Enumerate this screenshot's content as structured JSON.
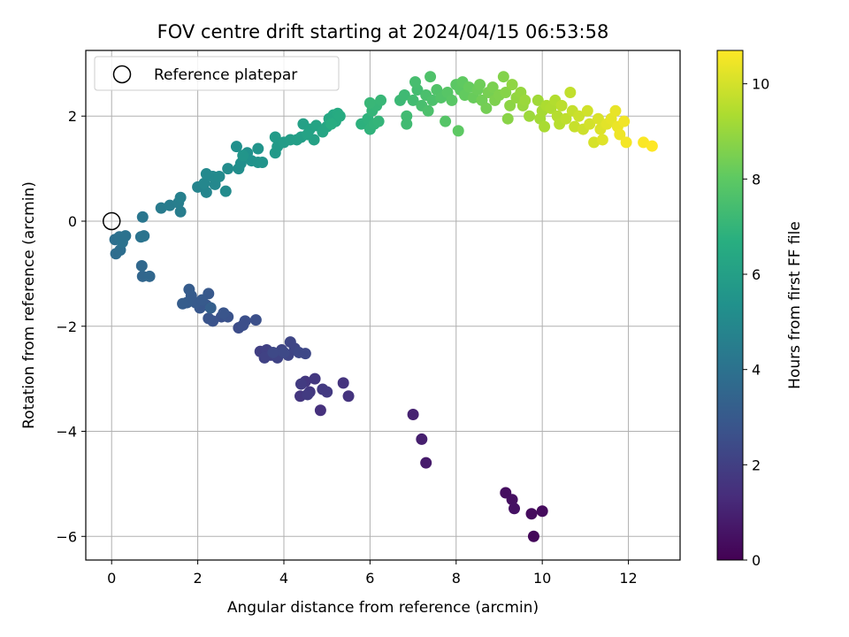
{
  "chart_data": {
    "type": "scatter",
    "title": "FOV centre drift starting at 2024/04/15 06:53:58",
    "xlabel": "Angular distance from reference (arcmin)",
    "ylabel": "Rotation from reference (arcmin)",
    "xlim": [
      -0.6,
      13.2
    ],
    "ylim": [
      -6.45,
      3.25
    ],
    "xticks": [
      0,
      2,
      4,
      6,
      8,
      10,
      12
    ],
    "yticks": [
      -6,
      -4,
      -2,
      0,
      2
    ],
    "grid": true,
    "legend": {
      "location": "top-left",
      "entries": [
        "Reference platepar"
      ]
    },
    "reference_point": {
      "x": 0,
      "y": 0
    },
    "colorbar": {
      "label": "Hours from first FF file",
      "range": [
        0,
        10.7
      ],
      "ticks": [
        0,
        2,
        4,
        6,
        8,
        10
      ],
      "colormap": "viridis"
    },
    "points": [
      {
        "x": 9.8,
        "y": -6.0,
        "c": 0.2
      },
      {
        "x": 9.75,
        "y": -5.57,
        "c": 0.3
      },
      {
        "x": 10.0,
        "y": -5.52,
        "c": 0.3
      },
      {
        "x": 9.15,
        "y": -5.17,
        "c": 0.4
      },
      {
        "x": 9.3,
        "y": -5.3,
        "c": 0.45
      },
      {
        "x": 9.35,
        "y": -5.47,
        "c": 0.5
      },
      {
        "x": 7.3,
        "y": -4.6,
        "c": 0.8
      },
      {
        "x": 7.2,
        "y": -4.15,
        "c": 0.9
      },
      {
        "x": 7.0,
        "y": -3.68,
        "c": 1.0
      },
      {
        "x": 4.85,
        "y": -3.6,
        "c": 1.5
      },
      {
        "x": 5.5,
        "y": -3.33,
        "c": 1.6
      },
      {
        "x": 5.38,
        "y": -3.08,
        "c": 1.6
      },
      {
        "x": 4.5,
        "y": -3.05,
        "c": 1.7
      },
      {
        "x": 4.38,
        "y": -3.33,
        "c": 1.7
      },
      {
        "x": 4.6,
        "y": -3.25,
        "c": 1.75
      },
      {
        "x": 4.72,
        "y": -3.0,
        "c": 1.75
      },
      {
        "x": 4.9,
        "y": -3.2,
        "c": 1.8
      },
      {
        "x": 5.0,
        "y": -3.25,
        "c": 1.8
      },
      {
        "x": 4.4,
        "y": -3.1,
        "c": 1.85
      },
      {
        "x": 4.55,
        "y": -3.3,
        "c": 1.85
      },
      {
        "x": 3.45,
        "y": -2.48,
        "c": 2.0
      },
      {
        "x": 3.6,
        "y": -2.45,
        "c": 2.05
      },
      {
        "x": 3.7,
        "y": -2.55,
        "c": 2.1
      },
      {
        "x": 3.55,
        "y": -2.6,
        "c": 2.1
      },
      {
        "x": 3.85,
        "y": -2.6,
        "c": 2.15
      },
      {
        "x": 3.95,
        "y": -2.45,
        "c": 2.2
      },
      {
        "x": 4.1,
        "y": -2.55,
        "c": 2.2
      },
      {
        "x": 4.25,
        "y": -2.42,
        "c": 2.25
      },
      {
        "x": 4.15,
        "y": -2.3,
        "c": 2.25
      },
      {
        "x": 4.35,
        "y": -2.5,
        "c": 2.3
      },
      {
        "x": 4.5,
        "y": -2.52,
        "c": 2.3
      },
      {
        "x": 3.75,
        "y": -2.5,
        "c": 2.35
      },
      {
        "x": 4.0,
        "y": -2.5,
        "c": 2.35
      },
      {
        "x": 2.95,
        "y": -2.03,
        "c": 2.5
      },
      {
        "x": 3.1,
        "y": -1.9,
        "c": 2.55
      },
      {
        "x": 3.05,
        "y": -1.98,
        "c": 2.55
      },
      {
        "x": 3.35,
        "y": -1.88,
        "c": 2.6
      },
      {
        "x": 2.55,
        "y": -1.82,
        "c": 2.65
      },
      {
        "x": 2.7,
        "y": -1.82,
        "c": 2.7
      },
      {
        "x": 2.35,
        "y": -1.9,
        "c": 2.7
      },
      {
        "x": 2.25,
        "y": -1.85,
        "c": 2.75
      },
      {
        "x": 2.6,
        "y": -1.75,
        "c": 2.8
      },
      {
        "x": 2.2,
        "y": -1.6,
        "c": 2.85
      },
      {
        "x": 2.05,
        "y": -1.65,
        "c": 2.9
      },
      {
        "x": 2.25,
        "y": -1.38,
        "c": 2.95
      },
      {
        "x": 1.95,
        "y": -1.55,
        "c": 3.0
      },
      {
        "x": 2.1,
        "y": -1.5,
        "c": 3.0
      },
      {
        "x": 1.85,
        "y": -1.42,
        "c": 3.05
      },
      {
        "x": 1.8,
        "y": -1.3,
        "c": 3.1
      },
      {
        "x": 1.75,
        "y": -1.55,
        "c": 3.1
      },
      {
        "x": 1.65,
        "y": -1.57,
        "c": 3.15
      },
      {
        "x": 2.3,
        "y": -1.65,
        "c": 3.2
      },
      {
        "x": 0.72,
        "y": -1.05,
        "c": 3.5
      },
      {
        "x": 0.88,
        "y": -1.05,
        "c": 3.55
      },
      {
        "x": 0.7,
        "y": -0.85,
        "c": 3.6
      },
      {
        "x": 0.1,
        "y": -0.62,
        "c": 3.8
      },
      {
        "x": 0.2,
        "y": -0.55,
        "c": 3.85
      },
      {
        "x": 0.08,
        "y": -0.35,
        "c": 3.9
      },
      {
        "x": 0.18,
        "y": -0.3,
        "c": 3.95
      },
      {
        "x": 0.25,
        "y": -0.4,
        "c": 4.0
      },
      {
        "x": 0.32,
        "y": -0.28,
        "c": 4.0
      },
      {
        "x": 0.68,
        "y": -0.3,
        "c": 4.05
      },
      {
        "x": 0.75,
        "y": -0.28,
        "c": 4.1
      },
      {
        "x": 0.72,
        "y": 0.08,
        "c": 4.2
      },
      {
        "x": 1.15,
        "y": 0.25,
        "c": 4.4
      },
      {
        "x": 1.35,
        "y": 0.3,
        "c": 4.45
      },
      {
        "x": 1.6,
        "y": 0.18,
        "c": 4.5
      },
      {
        "x": 1.55,
        "y": 0.35,
        "c": 4.55
      },
      {
        "x": 1.6,
        "y": 0.45,
        "c": 4.6
      },
      {
        "x": 2.0,
        "y": 0.65,
        "c": 4.8
      },
      {
        "x": 2.2,
        "y": 0.55,
        "c": 4.85
      },
      {
        "x": 2.15,
        "y": 0.72,
        "c": 4.9
      },
      {
        "x": 2.4,
        "y": 0.7,
        "c": 4.95
      },
      {
        "x": 2.35,
        "y": 0.85,
        "c": 5.0
      },
      {
        "x": 2.2,
        "y": 0.9,
        "c": 5.0
      },
      {
        "x": 2.5,
        "y": 0.85,
        "c": 5.05
      },
      {
        "x": 2.65,
        "y": 0.57,
        "c": 5.1
      },
      {
        "x": 2.7,
        "y": 1.0,
        "c": 5.15
      },
      {
        "x": 2.95,
        "y": 1.0,
        "c": 5.2
      },
      {
        "x": 3.0,
        "y": 1.1,
        "c": 5.25
      },
      {
        "x": 2.9,
        "y": 1.42,
        "c": 5.3
      },
      {
        "x": 3.15,
        "y": 1.3,
        "c": 5.35
      },
      {
        "x": 3.25,
        "y": 1.15,
        "c": 5.4
      },
      {
        "x": 3.4,
        "y": 1.12,
        "c": 5.45
      },
      {
        "x": 3.5,
        "y": 1.12,
        "c": 5.5
      },
      {
        "x": 3.4,
        "y": 1.38,
        "c": 5.5
      },
      {
        "x": 3.05,
        "y": 1.25,
        "c": 5.55
      },
      {
        "x": 3.8,
        "y": 1.3,
        "c": 5.7
      },
      {
        "x": 3.85,
        "y": 1.42,
        "c": 5.75
      },
      {
        "x": 3.8,
        "y": 1.6,
        "c": 5.8
      },
      {
        "x": 4.0,
        "y": 1.5,
        "c": 5.85
      },
      {
        "x": 4.15,
        "y": 1.55,
        "c": 5.9
      },
      {
        "x": 4.3,
        "y": 1.55,
        "c": 5.95
      },
      {
        "x": 4.4,
        "y": 1.6,
        "c": 6.0
      },
      {
        "x": 4.45,
        "y": 1.85,
        "c": 6.05
      },
      {
        "x": 4.6,
        "y": 1.75,
        "c": 6.1
      },
      {
        "x": 4.7,
        "y": 1.55,
        "c": 6.1
      },
      {
        "x": 4.55,
        "y": 1.65,
        "c": 6.15
      },
      {
        "x": 4.75,
        "y": 1.82,
        "c": 6.2
      },
      {
        "x": 4.9,
        "y": 1.7,
        "c": 6.25
      },
      {
        "x": 5.0,
        "y": 1.8,
        "c": 6.3
      },
      {
        "x": 5.05,
        "y": 1.95,
        "c": 6.35
      },
      {
        "x": 5.15,
        "y": 2.02,
        "c": 6.4
      },
      {
        "x": 5.2,
        "y": 1.9,
        "c": 6.45
      },
      {
        "x": 5.25,
        "y": 2.05,
        "c": 6.5
      },
      {
        "x": 5.3,
        "y": 2.0,
        "c": 6.55
      },
      {
        "x": 5.1,
        "y": 1.85,
        "c": 6.6
      },
      {
        "x": 5.8,
        "y": 1.85,
        "c": 6.8
      },
      {
        "x": 5.95,
        "y": 1.95,
        "c": 6.85
      },
      {
        "x": 6.0,
        "y": 1.75,
        "c": 6.9
      },
      {
        "x": 6.1,
        "y": 1.85,
        "c": 6.95
      },
      {
        "x": 6.2,
        "y": 1.9,
        "c": 7.0
      },
      {
        "x": 6.05,
        "y": 2.1,
        "c": 7.0
      },
      {
        "x": 6.15,
        "y": 2.2,
        "c": 7.05
      },
      {
        "x": 6.25,
        "y": 2.3,
        "c": 7.1
      },
      {
        "x": 6.0,
        "y": 2.25,
        "c": 7.1
      },
      {
        "x": 6.7,
        "y": 2.3,
        "c": 7.2
      },
      {
        "x": 6.8,
        "y": 2.4,
        "c": 7.25
      },
      {
        "x": 6.85,
        "y": 2.0,
        "c": 7.3
      },
      {
        "x": 6.85,
        "y": 1.85,
        "c": 7.3
      },
      {
        "x": 7.0,
        "y": 2.3,
        "c": 7.35
      },
      {
        "x": 7.1,
        "y": 2.5,
        "c": 7.4
      },
      {
        "x": 7.05,
        "y": 2.65,
        "c": 7.45
      },
      {
        "x": 7.2,
        "y": 2.2,
        "c": 7.5
      },
      {
        "x": 7.3,
        "y": 2.4,
        "c": 7.55
      },
      {
        "x": 7.35,
        "y": 2.1,
        "c": 7.6
      },
      {
        "x": 7.45,
        "y": 2.3,
        "c": 7.6
      },
      {
        "x": 7.4,
        "y": 2.75,
        "c": 7.65
      },
      {
        "x": 7.55,
        "y": 2.5,
        "c": 7.7
      },
      {
        "x": 7.65,
        "y": 2.35,
        "c": 7.75
      },
      {
        "x": 7.75,
        "y": 1.9,
        "c": 7.8
      },
      {
        "x": 7.8,
        "y": 2.45,
        "c": 7.85
      },
      {
        "x": 7.9,
        "y": 2.3,
        "c": 7.9
      },
      {
        "x": 8.0,
        "y": 2.6,
        "c": 7.95
      },
      {
        "x": 8.05,
        "y": 1.72,
        "c": 8.0
      },
      {
        "x": 8.1,
        "y": 2.5,
        "c": 8.0
      },
      {
        "x": 8.15,
        "y": 2.65,
        "c": 8.05
      },
      {
        "x": 8.2,
        "y": 2.4,
        "c": 8.1
      },
      {
        "x": 8.3,
        "y": 2.55,
        "c": 8.15
      },
      {
        "x": 8.4,
        "y": 2.35,
        "c": 8.2
      },
      {
        "x": 8.5,
        "y": 2.5,
        "c": 8.25
      },
      {
        "x": 8.55,
        "y": 2.6,
        "c": 8.3
      },
      {
        "x": 8.6,
        "y": 2.3,
        "c": 8.35
      },
      {
        "x": 8.7,
        "y": 2.15,
        "c": 8.4
      },
      {
        "x": 8.75,
        "y": 2.45,
        "c": 8.45
      },
      {
        "x": 8.85,
        "y": 2.55,
        "c": 8.5
      },
      {
        "x": 8.9,
        "y": 2.3,
        "c": 8.55
      },
      {
        "x": 9.0,
        "y": 2.4,
        "c": 8.6
      },
      {
        "x": 9.1,
        "y": 2.75,
        "c": 8.65
      },
      {
        "x": 9.15,
        "y": 2.45,
        "c": 8.7
      },
      {
        "x": 9.2,
        "y": 1.95,
        "c": 8.75
      },
      {
        "x": 9.25,
        "y": 2.2,
        "c": 8.8
      },
      {
        "x": 9.3,
        "y": 2.6,
        "c": 8.85
      },
      {
        "x": 9.4,
        "y": 2.35,
        "c": 8.9
      },
      {
        "x": 9.5,
        "y": 2.45,
        "c": 8.95
      },
      {
        "x": 9.55,
        "y": 2.2,
        "c": 9.0
      },
      {
        "x": 9.6,
        "y": 2.3,
        "c": 9.05
      },
      {
        "x": 9.7,
        "y": 2.0,
        "c": 9.1
      },
      {
        "x": 9.9,
        "y": 2.3,
        "c": 9.15
      },
      {
        "x": 9.95,
        "y": 1.95,
        "c": 9.2
      },
      {
        "x": 10.0,
        "y": 2.1,
        "c": 9.25
      },
      {
        "x": 10.05,
        "y": 1.8,
        "c": 9.3
      },
      {
        "x": 10.1,
        "y": 2.2,
        "c": 9.35
      },
      {
        "x": 10.2,
        "y": 2.15,
        "c": 9.4
      },
      {
        "x": 10.3,
        "y": 2.3,
        "c": 9.45
      },
      {
        "x": 10.35,
        "y": 2.0,
        "c": 9.5
      },
      {
        "x": 10.4,
        "y": 1.85,
        "c": 9.55
      },
      {
        "x": 10.45,
        "y": 2.2,
        "c": 9.6
      },
      {
        "x": 10.55,
        "y": 1.95,
        "c": 9.65
      },
      {
        "x": 10.65,
        "y": 2.45,
        "c": 9.7
      },
      {
        "x": 10.7,
        "y": 2.1,
        "c": 9.75
      },
      {
        "x": 10.75,
        "y": 1.8,
        "c": 9.8
      },
      {
        "x": 10.85,
        "y": 2.0,
        "c": 9.85
      },
      {
        "x": 10.95,
        "y": 1.75,
        "c": 9.9
      },
      {
        "x": 11.05,
        "y": 2.1,
        "c": 9.95
      },
      {
        "x": 11.1,
        "y": 1.85,
        "c": 10.0
      },
      {
        "x": 11.2,
        "y": 1.5,
        "c": 10.05
      },
      {
        "x": 11.3,
        "y": 1.95,
        "c": 10.1
      },
      {
        "x": 11.35,
        "y": 1.75,
        "c": 10.15
      },
      {
        "x": 11.4,
        "y": 1.55,
        "c": 10.2
      },
      {
        "x": 11.5,
        "y": 1.85,
        "c": 10.25
      },
      {
        "x": 11.6,
        "y": 1.95,
        "c": 10.3
      },
      {
        "x": 11.7,
        "y": 2.1,
        "c": 10.35
      },
      {
        "x": 11.75,
        "y": 1.8,
        "c": 10.4
      },
      {
        "x": 11.8,
        "y": 1.65,
        "c": 10.45
      },
      {
        "x": 11.9,
        "y": 1.9,
        "c": 10.5
      },
      {
        "x": 11.95,
        "y": 1.5,
        "c": 10.55
      },
      {
        "x": 12.35,
        "y": 1.5,
        "c": 10.65
      },
      {
        "x": 12.55,
        "y": 1.43,
        "c": 10.7
      }
    ]
  }
}
